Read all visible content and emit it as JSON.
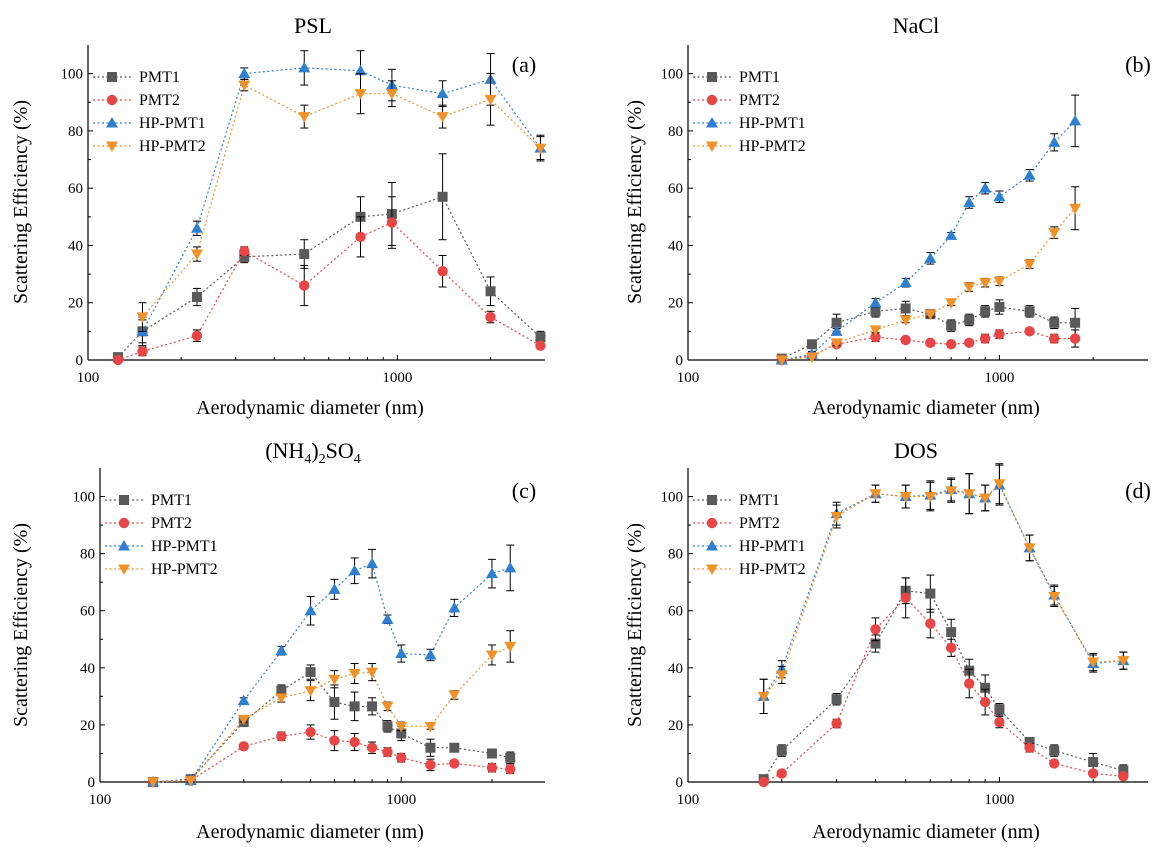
{
  "figure_title": "",
  "legend_series_order": [
    "PMT1",
    "PMT2",
    "HP-PMT1",
    "HP-PMT2"
  ],
  "series_styles": {
    "PMT1": {
      "color": "#5a5a5a",
      "marker": "square"
    },
    "PMT2": {
      "color": "#e84646",
      "marker": "circle"
    },
    "HP-PMT1": {
      "color": "#2f7fd0",
      "marker": "triangle-up"
    },
    "HP-PMT2": {
      "color": "#f0922a",
      "marker": "triangle-down"
    }
  },
  "chart_data": [
    {
      "type": "scatter",
      "panel": "(a)",
      "title": "PSL",
      "xlabel": "Aerodynamic diameter (nm)",
      "ylabel": "Scattering  Efficiency (%)",
      "xscale": "log",
      "xlim": [
        100,
        3000
      ],
      "ylim": [
        0,
        110
      ],
      "xticks": [
        100,
        1000
      ],
      "yticks": [
        0,
        20,
        40,
        60,
        80,
        100
      ],
      "legend": "top-left",
      "grid": false,
      "series": [
        {
          "name": "PMT1",
          "x": [
            125,
            150,
            225,
            320,
            500,
            760,
            960,
            1400,
            2000,
            2900
          ],
          "y": [
            1,
            10,
            22,
            36,
            37,
            50,
            51,
            57,
            24,
            8
          ],
          "err": [
            1,
            4,
            3,
            2,
            5,
            7,
            11,
            15,
            5,
            2
          ]
        },
        {
          "name": "PMT2",
          "x": [
            125,
            150,
            225,
            320,
            500,
            760,
            960,
            1400,
            2000,
            2900
          ],
          "y": [
            0,
            3,
            8.5,
            38,
            26,
            43,
            48,
            31,
            15,
            5
          ],
          "err": [
            0.5,
            1.5,
            2,
            1.5,
            7,
            7,
            9,
            5.5,
            2,
            1
          ]
        },
        {
          "name": "HP-PMT1",
          "x": [
            150,
            225,
            320,
            500,
            760,
            960,
            1400,
            2000,
            2900
          ],
          "y": [
            10,
            46,
            100,
            102,
            101,
            96,
            93,
            98,
            74
          ],
          "err": [
            5,
            2.5,
            2,
            6,
            7,
            5.5,
            4.5,
            9,
            4.5
          ]
        },
        {
          "name": "HP-PMT2",
          "x": [
            150,
            225,
            320,
            500,
            760,
            960,
            1400,
            2000,
            2900
          ],
          "y": [
            15,
            37,
            96,
            85,
            93,
            93,
            85,
            91,
            74
          ],
          "err": [
            5,
            2.5,
            2,
            4,
            7,
            4.5,
            4,
            9,
            4
          ]
        }
      ]
    },
    {
      "type": "scatter",
      "panel": "(b)",
      "title": "NaCl",
      "xlabel": "Aerodynamic diameter (nm)",
      "ylabel": "Scattering  Efficiency (%)",
      "xscale": "log",
      "xlim": [
        100,
        3000
      ],
      "ylim": [
        0,
        110
      ],
      "xticks": [
        100,
        1000
      ],
      "yticks": [
        0,
        20,
        40,
        60,
        80,
        100
      ],
      "legend": "top-left",
      "grid": false,
      "series": [
        {
          "name": "PMT1",
          "x": [
            200,
            250,
            300,
            400,
            500,
            600,
            700,
            800,
            900,
            1000,
            1250,
            1500,
            1750
          ],
          "y": [
            0.5,
            5.5,
            13,
            17,
            18,
            16,
            12,
            14,
            17,
            18.5,
            17,
            13,
            13
          ],
          "err": [
            0.5,
            1,
            3,
            2,
            2.5,
            1.5,
            2,
            2,
            2,
            2.5,
            2,
            2,
            5
          ]
        },
        {
          "name": "PMT2",
          "x": [
            200,
            250,
            300,
            400,
            500,
            600,
            700,
            800,
            900,
            1000,
            1250,
            1500,
            1750
          ],
          "y": [
            0,
            1.5,
            5.5,
            8,
            7,
            6,
            5.5,
            6,
            7.5,
            9,
            10,
            7.5,
            7.5
          ],
          "err": [
            0.5,
            1,
            1,
            1.5,
            1,
            1,
            1,
            1,
            1.5,
            1.5,
            1,
            1.5,
            3
          ]
        },
        {
          "name": "HP-PMT1",
          "x": [
            200,
            250,
            300,
            400,
            500,
            600,
            700,
            800,
            900,
            1000,
            1250,
            1500,
            1750
          ],
          "y": [
            0,
            2,
            10,
            20,
            27,
            35.5,
            43.5,
            55,
            60,
            57,
            64.5,
            76,
            83.5
          ],
          "err": [
            0.5,
            1,
            1,
            1.5,
            1.5,
            2,
            1,
            2,
            2,
            2,
            2,
            3,
            9
          ]
        },
        {
          "name": "HP-PMT2",
          "x": [
            200,
            250,
            300,
            400,
            500,
            600,
            700,
            800,
            900,
            1000,
            1250,
            1500,
            1750
          ],
          "y": [
            0,
            1,
            6,
            10.5,
            14,
            16,
            20,
            25.5,
            27,
            27.5,
            33.5,
            44.5,
            53
          ],
          "err": [
            0.5,
            1,
            1,
            1,
            1,
            1,
            1,
            1.5,
            1.5,
            1.5,
            1.5,
            2,
            7.5
          ]
        }
      ]
    },
    {
      "type": "scatter",
      "panel": "(c)",
      "title": "(NH4)2SO4",
      "xlabel": "Aerodynamic diameter (nm)",
      "ylabel": "Scattering  Efficiency (%)",
      "xscale": "log",
      "xlim": [
        100,
        3000
      ],
      "ylim": [
        0,
        110
      ],
      "xticks": [
        100,
        1000
      ],
      "yticks": [
        0,
        20,
        40,
        60,
        80,
        100
      ],
      "legend": "top-left",
      "grid": false,
      "series": [
        {
          "name": "PMT1",
          "x": [
            150,
            200,
            300,
            400,
            500,
            600,
            700,
            800,
            900,
            1000,
            1250,
            1500,
            2000,
            2300
          ],
          "y": [
            0,
            1,
            21,
            32,
            38.5,
            28,
            26.5,
            26.5,
            19.5,
            17,
            12,
            12,
            10,
            8.5
          ],
          "err": [
            0.5,
            0.5,
            1.5,
            2,
            2.5,
            6,
            5,
            3,
            2,
            2.5,
            3,
            1,
            1.5,
            2
          ]
        },
        {
          "name": "PMT2",
          "x": [
            150,
            200,
            300,
            400,
            500,
            600,
            700,
            800,
            900,
            1000,
            1250,
            1500,
            2000,
            2300
          ],
          "y": [
            0,
            0.5,
            12.5,
            16,
            17.5,
            14.5,
            14,
            12,
            10.5,
            8.5,
            6,
            6.5,
            5,
            4.5
          ],
          "err": [
            0.5,
            0.5,
            1,
            1.5,
            2.5,
            3.5,
            3,
            2,
            1.5,
            1.5,
            2,
            1,
            1.5,
            1.5
          ]
        },
        {
          "name": "HP-PMT1",
          "x": [
            150,
            200,
            300,
            400,
            500,
            600,
            700,
            800,
            900,
            1000,
            1250,
            1500,
            2000,
            2300
          ],
          "y": [
            0,
            0.5,
            28.5,
            46,
            60,
            67.5,
            74,
            76.5,
            57,
            45,
            44.5,
            61,
            73,
            75
          ],
          "err": [
            0.5,
            0.5,
            1,
            1.5,
            5,
            3.5,
            4.5,
            5,
            1.5,
            3,
            2,
            3,
            5,
            8
          ]
        },
        {
          "name": "HP-PMT2",
          "x": [
            150,
            200,
            300,
            400,
            500,
            600,
            700,
            800,
            900,
            1000,
            1250,
            1500,
            2000,
            2300
          ],
          "y": [
            0,
            0.5,
            22,
            29.5,
            32,
            36,
            38,
            38.5,
            26.5,
            19.5,
            19.5,
            30.5,
            44.5,
            47.5
          ],
          "err": [
            0.5,
            0.5,
            1,
            1.5,
            3.5,
            3,
            3.5,
            3,
            1.5,
            1.5,
            1,
            1.5,
            3.5,
            5.5
          ]
        }
      ]
    },
    {
      "type": "scatter",
      "panel": "(d)",
      "title": "DOS",
      "xlabel": "Aerodynamic diameter (nm)",
      "ylabel": "Scattering  Efficiency (%)",
      "xscale": "log",
      "xlim": [
        100,
        3000
      ],
      "ylim": [
        0,
        110
      ],
      "xticks": [
        100,
        1000
      ],
      "yticks": [
        0,
        20,
        40,
        60,
        80,
        100
      ],
      "legend": "top-left",
      "grid": false,
      "series": [
        {
          "name": "PMT1",
          "x": [
            175,
            200,
            300,
            400,
            500,
            600,
            700,
            800,
            900,
            1000,
            1250,
            1500,
            2000,
            2500
          ],
          "y": [
            1,
            11,
            29,
            48.5,
            67,
            66,
            52.5,
            39,
            33,
            25.5,
            14,
            11,
            7,
            4
          ],
          "err": [
            1,
            2,
            2,
            3,
            4.5,
            6.5,
            4.5,
            4,
            4.5,
            2,
            1.5,
            2,
            3,
            2
          ]
        },
        {
          "name": "PMT2",
          "x": [
            175,
            200,
            300,
            400,
            500,
            600,
            700,
            800,
            900,
            1000,
            1250,
            1500,
            2000,
            2500
          ],
          "y": [
            0,
            3,
            20.5,
            53.5,
            64.5,
            55.5,
            47,
            34.5,
            28,
            21,
            12,
            6.5,
            3,
            2
          ],
          "err": [
            0.5,
            1,
            1.5,
            4,
            7,
            5,
            3,
            5,
            4.5,
            2,
            1.5,
            1,
            1,
            1
          ]
        },
        {
          "name": "HP-PMT1",
          "x": [
            175,
            200,
            300,
            400,
            500,
            600,
            700,
            800,
            900,
            1000,
            1250,
            1500,
            2000,
            2500
          ],
          "y": [
            30,
            39.5,
            94,
            101,
            100,
            100.5,
            102.5,
            101,
            99.5,
            104,
            82,
            65.5,
            41.5,
            42.5
          ],
          "err": [
            6,
            3,
            4,
            3,
            4,
            5,
            4,
            7,
            4.5,
            7,
            4.5,
            3.5,
            3,
            3
          ]
        },
        {
          "name": "HP-PMT2",
          "x": [
            175,
            200,
            300,
            400,
            500,
            600,
            700,
            800,
            900,
            1000,
            1250,
            1500,
            2000,
            2500
          ],
          "y": [
            30,
            37.5,
            93,
            101,
            100,
            100,
            102,
            101,
            99.5,
            104.5,
            82,
            65,
            42,
            42.5
          ],
          "err": [
            6,
            3,
            4,
            3,
            4,
            5,
            4,
            7,
            4.5,
            7,
            4.5,
            3.5,
            3,
            3
          ]
        }
      ]
    }
  ]
}
